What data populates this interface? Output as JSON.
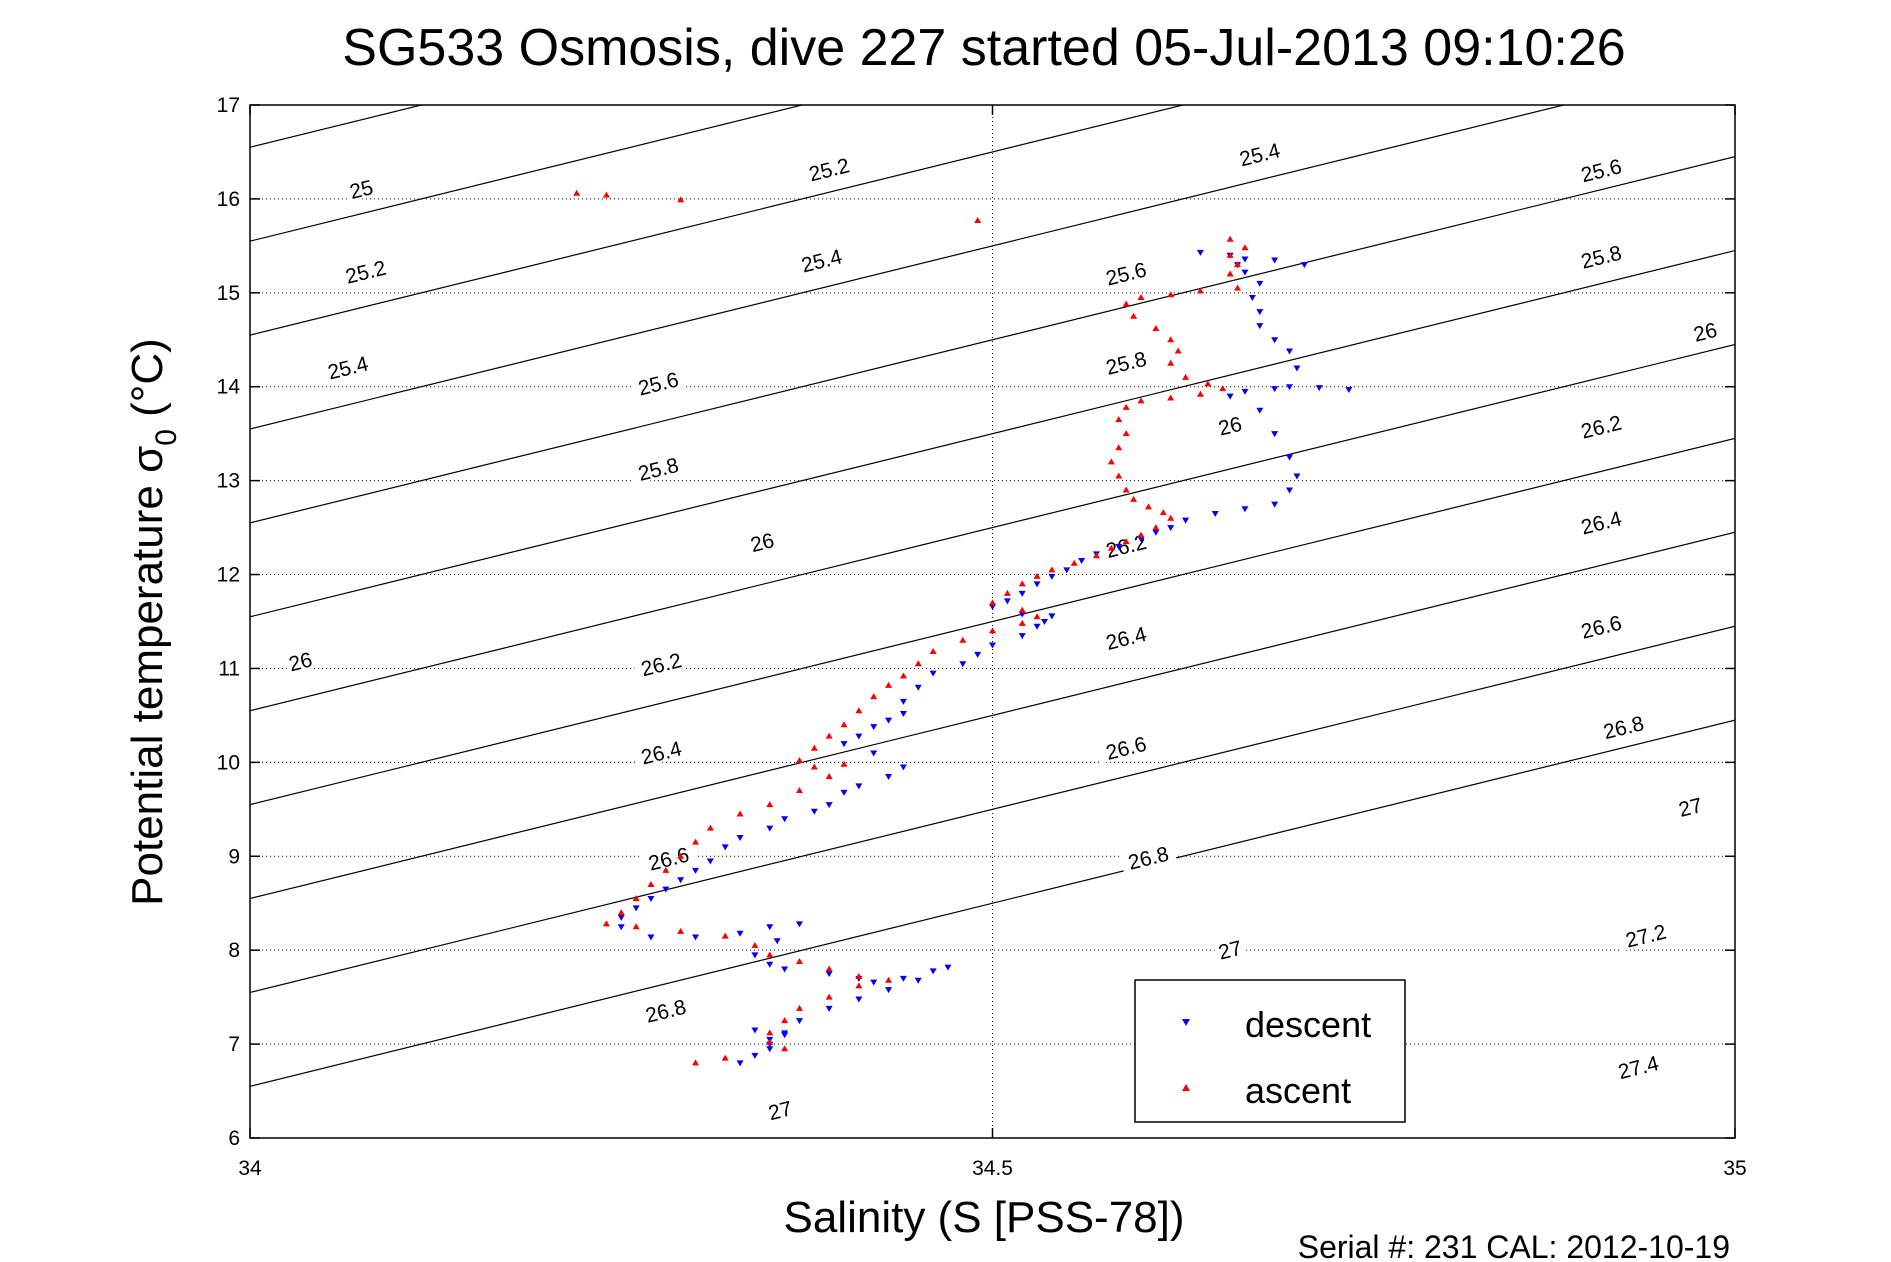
{
  "title": "SG533 Osmosis, dive 227 started 05-Jul-2013 09:10:26",
  "footer": "Serial #: 231  CAL: 2012-10-19",
  "chart_data": {
    "type": "scatter",
    "title": "SG533 Osmosis, dive 227 started 05-Jul-2013 09:10:26",
    "xlabel": "Salinity (S [PSS-78])",
    "ylabel_main": "Potential temperature σ",
    "ylabel_sub": "0",
    "ylabel_unit": " (°C)",
    "xlim": [
      34,
      35
    ],
    "ylim": [
      6,
      17
    ],
    "xticks": [
      34,
      34.5,
      35
    ],
    "xtick_labels": [
      "34",
      "34.5",
      "35"
    ],
    "yticks": [
      6,
      7,
      8,
      9,
      10,
      11,
      12,
      13,
      14,
      15,
      16,
      17
    ],
    "ytick_labels": [
      "6",
      "7",
      "8",
      "9",
      "10",
      "11",
      "12",
      "13",
      "14",
      "15",
      "16",
      "17"
    ],
    "grid": true,
    "legend_position": "bottom-right",
    "contours": {
      "levels": [
        25,
        25.2,
        25.4,
        25.6,
        25.8,
        26,
        26.2,
        26.4,
        26.6,
        26.8,
        27,
        27.2,
        27.4
      ],
      "label_positions": [
        {
          "label": "25",
          "s": 34.075,
          "t": 16.1
        },
        {
          "label": "25.2",
          "s": 34.078,
          "t": 15.22
        },
        {
          "label": "25.2",
          "s": 34.39,
          "t": 16.31
        },
        {
          "label": "25.4",
          "s": 34.066,
          "t": 14.2
        },
        {
          "label": "25.4",
          "s": 34.385,
          "t": 15.34
        },
        {
          "label": "25.4",
          "s": 34.68,
          "t": 16.47
        },
        {
          "label": "25.6",
          "s": 34.275,
          "t": 14.03
        },
        {
          "label": "25.6",
          "s": 34.59,
          "t": 15.2
        },
        {
          "label": "25.6",
          "s": 34.91,
          "t": 16.3
        },
        {
          "label": "25.8",
          "s": 34.275,
          "t": 13.12
        },
        {
          "label": "25.8",
          "s": 34.59,
          "t": 14.25
        },
        {
          "label": "25.8",
          "s": 34.91,
          "t": 15.38
        },
        {
          "label": "26",
          "s": 34.034,
          "t": 11.07
        },
        {
          "label": "26",
          "s": 34.345,
          "t": 12.34
        },
        {
          "label": "26",
          "s": 34.66,
          "t": 13.58
        },
        {
          "label": "26",
          "s": 34.98,
          "t": 14.58
        },
        {
          "label": "26.2",
          "s": 34.277,
          "t": 11.04
        },
        {
          "label": "26.2",
          "s": 34.59,
          "t": 12.3
        },
        {
          "label": "26.2",
          "s": 34.91,
          "t": 13.57
        },
        {
          "label": "26.4",
          "s": 34.277,
          "t": 10.1
        },
        {
          "label": "26.4",
          "s": 34.59,
          "t": 11.32
        },
        {
          "label": "26.4",
          "s": 34.91,
          "t": 12.55
        },
        {
          "label": "26.6",
          "s": 34.282,
          "t": 8.97
        },
        {
          "label": "26.6",
          "s": 34.59,
          "t": 10.15
        },
        {
          "label": "26.6",
          "s": 34.91,
          "t": 11.44
        },
        {
          "label": "26.8",
          "s": 34.28,
          "t": 7.35
        },
        {
          "label": "26.8",
          "s": 34.605,
          "t": 8.98
        },
        {
          "label": "26.8",
          "s": 34.925,
          "t": 10.37
        },
        {
          "label": "27",
          "s": 34.357,
          "t": 6.29
        },
        {
          "label": "27",
          "s": 34.66,
          "t": 8.0
        },
        {
          "label": "27",
          "s": 34.97,
          "t": 9.52
        },
        {
          "label": "27.2",
          "s": 34.94,
          "t": 8.15
        },
        {
          "label": "27.2",
          "s": 34.94,
          "t": 8.15
        },
        {
          "label": "27.4",
          "s": 34.935,
          "t": 6.75
        }
      ]
    },
    "series": [
      {
        "name": "descent",
        "color": "#0000ff",
        "marker": "triangle-down",
        "points": [
          [
            34.64,
            15.43
          ],
          [
            34.66,
            15.4
          ],
          [
            34.67,
            15.36
          ],
          [
            34.665,
            15.3
          ],
          [
            34.67,
            15.22
          ],
          [
            34.69,
            15.35
          ],
          [
            34.71,
            15.3
          ],
          [
            34.68,
            15.1
          ],
          [
            34.675,
            14.95
          ],
          [
            34.68,
            14.8
          ],
          [
            34.68,
            14.65
          ],
          [
            34.69,
            14.5
          ],
          [
            34.7,
            14.38
          ],
          [
            34.705,
            14.2
          ],
          [
            34.7,
            14.0
          ],
          [
            34.67,
            13.95
          ],
          [
            34.69,
            13.98
          ],
          [
            34.72,
            13.99
          ],
          [
            34.74,
            13.97
          ],
          [
            34.66,
            13.9
          ],
          [
            34.68,
            13.75
          ],
          [
            34.69,
            13.5
          ],
          [
            34.7,
            13.25
          ],
          [
            34.705,
            13.05
          ],
          [
            34.7,
            12.9
          ],
          [
            34.69,
            12.75
          ],
          [
            34.67,
            12.7
          ],
          [
            34.65,
            12.65
          ],
          [
            34.63,
            12.58
          ],
          [
            34.62,
            12.5
          ],
          [
            34.61,
            12.45
          ],
          [
            34.6,
            12.38
          ],
          [
            34.585,
            12.3
          ],
          [
            34.57,
            12.22
          ],
          [
            34.56,
            12.15
          ],
          [
            34.55,
            12.05
          ],
          [
            34.54,
            11.98
          ],
          [
            34.53,
            11.9
          ],
          [
            34.52,
            11.8
          ],
          [
            34.51,
            11.72
          ],
          [
            34.5,
            11.66
          ],
          [
            34.52,
            11.58
          ],
          [
            34.54,
            11.56
          ],
          [
            34.535,
            11.5
          ],
          [
            34.53,
            11.45
          ],
          [
            34.52,
            11.35
          ],
          [
            34.5,
            11.25
          ],
          [
            34.49,
            11.15
          ],
          [
            34.48,
            11.05
          ],
          [
            34.46,
            10.95
          ],
          [
            34.45,
            10.8
          ],
          [
            34.44,
            10.65
          ],
          [
            34.44,
            10.52
          ],
          [
            34.43,
            10.45
          ],
          [
            34.42,
            10.38
          ],
          [
            34.41,
            10.28
          ],
          [
            34.4,
            10.2
          ],
          [
            34.42,
            10.1
          ],
          [
            34.44,
            9.95
          ],
          [
            34.43,
            9.85
          ],
          [
            34.41,
            9.75
          ],
          [
            34.4,
            9.68
          ],
          [
            34.39,
            9.55
          ],
          [
            34.38,
            9.48
          ],
          [
            34.36,
            9.4
          ],
          [
            34.35,
            9.3
          ],
          [
            34.33,
            9.2
          ],
          [
            34.32,
            9.1
          ],
          [
            34.31,
            8.95
          ],
          [
            34.3,
            8.85
          ],
          [
            34.29,
            8.75
          ],
          [
            34.28,
            8.65
          ],
          [
            34.27,
            8.55
          ],
          [
            34.26,
            8.45
          ],
          [
            34.25,
            8.35
          ],
          [
            34.25,
            8.25
          ],
          [
            34.27,
            8.14
          ],
          [
            34.3,
            8.14
          ],
          [
            34.33,
            8.18
          ],
          [
            34.35,
            8.25
          ],
          [
            34.37,
            8.28
          ],
          [
            34.355,
            8.1
          ],
          [
            34.34,
            7.95
          ],
          [
            34.35,
            7.85
          ],
          [
            34.36,
            7.8
          ],
          [
            34.39,
            7.75
          ],
          [
            34.41,
            7.7
          ],
          [
            34.42,
            7.66
          ],
          [
            34.44,
            7.7
          ],
          [
            34.46,
            7.78
          ],
          [
            34.47,
            7.82
          ],
          [
            34.45,
            7.68
          ],
          [
            34.43,
            7.58
          ],
          [
            34.41,
            7.48
          ],
          [
            34.39,
            7.38
          ],
          [
            34.37,
            7.25
          ],
          [
            34.36,
            7.12
          ],
          [
            34.35,
            7.0
          ],
          [
            34.34,
            6.88
          ],
          [
            34.33,
            6.8
          ],
          [
            34.34,
            7.15
          ],
          [
            34.35,
            7.05
          ],
          [
            34.36,
            7.1
          ],
          [
            34.35,
            6.95
          ]
        ]
      },
      {
        "name": "ascent",
        "color": "#ff0000",
        "marker": "triangle-up",
        "points": [
          [
            34.22,
            16.06
          ],
          [
            34.24,
            16.04
          ],
          [
            34.29,
            15.99
          ],
          [
            34.49,
            15.77
          ],
          [
            34.66,
            15.57
          ],
          [
            34.67,
            15.48
          ],
          [
            34.66,
            15.4
          ],
          [
            34.665,
            15.3
          ],
          [
            34.66,
            15.2
          ],
          [
            34.665,
            15.05
          ],
          [
            34.64,
            15.02
          ],
          [
            34.62,
            14.98
          ],
          [
            34.6,
            14.95
          ],
          [
            34.59,
            14.88
          ],
          [
            34.595,
            14.75
          ],
          [
            34.61,
            14.62
          ],
          [
            34.62,
            14.5
          ],
          [
            34.625,
            14.38
          ],
          [
            34.62,
            14.25
          ],
          [
            34.63,
            14.1
          ],
          [
            34.645,
            14.03
          ],
          [
            34.655,
            13.98
          ],
          [
            34.64,
            13.92
          ],
          [
            34.62,
            13.88
          ],
          [
            34.6,
            13.85
          ],
          [
            34.59,
            13.78
          ],
          [
            34.585,
            13.65
          ],
          [
            34.59,
            13.5
          ],
          [
            34.585,
            13.35
          ],
          [
            34.58,
            13.2
          ],
          [
            34.585,
            13.05
          ],
          [
            34.59,
            12.9
          ],
          [
            34.595,
            12.8
          ],
          [
            34.605,
            12.72
          ],
          [
            34.615,
            12.66
          ],
          [
            34.62,
            12.6
          ],
          [
            34.61,
            12.5
          ],
          [
            34.6,
            12.42
          ],
          [
            34.59,
            12.35
          ],
          [
            34.58,
            12.28
          ],
          [
            34.57,
            12.2
          ],
          [
            34.555,
            12.12
          ],
          [
            34.54,
            12.05
          ],
          [
            34.53,
            11.98
          ],
          [
            34.52,
            11.9
          ],
          [
            34.51,
            11.8
          ],
          [
            34.5,
            11.7
          ],
          [
            34.52,
            11.62
          ],
          [
            34.53,
            11.55
          ],
          [
            34.52,
            11.48
          ],
          [
            34.5,
            11.4
          ],
          [
            34.48,
            11.3
          ],
          [
            34.46,
            11.18
          ],
          [
            34.45,
            11.05
          ],
          [
            34.44,
            10.92
          ],
          [
            34.43,
            10.82
          ],
          [
            34.42,
            10.7
          ],
          [
            34.41,
            10.55
          ],
          [
            34.4,
            10.4
          ],
          [
            34.39,
            10.28
          ],
          [
            34.38,
            10.15
          ],
          [
            34.37,
            10.02
          ],
          [
            34.38,
            9.95
          ],
          [
            34.4,
            9.98
          ],
          [
            34.39,
            9.85
          ],
          [
            34.37,
            9.7
          ],
          [
            34.35,
            9.55
          ],
          [
            34.33,
            9.45
          ],
          [
            34.31,
            9.3
          ],
          [
            34.3,
            9.15
          ],
          [
            34.29,
            9.0
          ],
          [
            34.28,
            8.85
          ],
          [
            34.27,
            8.7
          ],
          [
            34.26,
            8.55
          ],
          [
            34.25,
            8.4
          ],
          [
            34.24,
            8.28
          ],
          [
            34.26,
            8.25
          ],
          [
            34.29,
            8.2
          ],
          [
            34.32,
            8.15
          ],
          [
            34.34,
            8.05
          ],
          [
            34.35,
            7.95
          ],
          [
            34.37,
            7.88
          ],
          [
            34.39,
            7.8
          ],
          [
            34.41,
            7.72
          ],
          [
            34.43,
            7.68
          ],
          [
            34.41,
            7.62
          ],
          [
            34.39,
            7.5
          ],
          [
            34.37,
            7.38
          ],
          [
            34.36,
            7.25
          ],
          [
            34.35,
            7.12
          ],
          [
            34.35,
            7.02
          ],
          [
            34.36,
            6.95
          ],
          [
            34.32,
            6.85
          ],
          [
            34.3,
            6.8
          ]
        ]
      }
    ]
  }
}
